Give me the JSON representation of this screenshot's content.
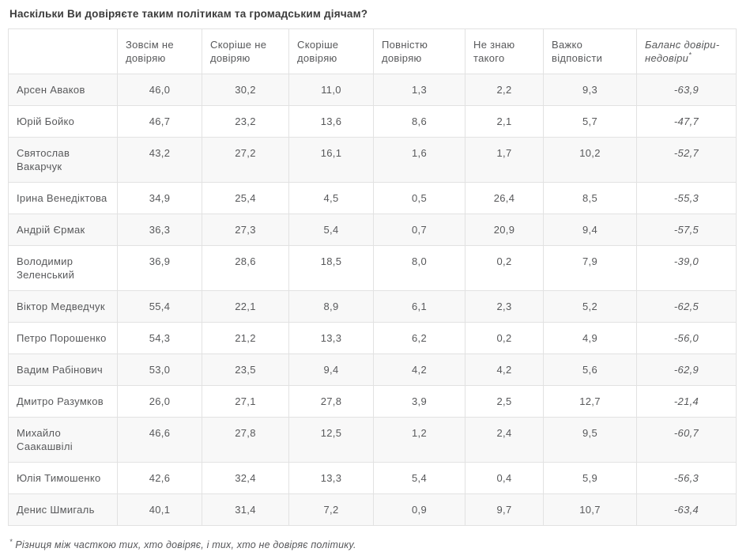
{
  "title": "Наскільки Ви довіряєте таким політикам та громадським діячам?",
  "chart_data": {
    "type": "table",
    "title": "Наскільки Ви довіряєте таким політикам та громадським діячам?",
    "name_column_header": "",
    "columns": [
      "Зовсім не довіряю",
      "Скоріше не довіряю",
      "Скоріше довіряю",
      "Повністю довіряю",
      "Не знаю такого",
      "Важко відповісти"
    ],
    "balance_column": {
      "label": "Баланс довіри-недовіри",
      "marker": "*"
    },
    "rows": [
      {
        "name": "Арсен Аваков",
        "values": [
          "46,0",
          "30,2",
          "11,0",
          "1,3",
          "2,2",
          "9,3"
        ],
        "balance": "-63,9"
      },
      {
        "name": "Юрій Бойко",
        "values": [
          "46,7",
          "23,2",
          "13,6",
          "8,6",
          "2,1",
          "5,7"
        ],
        "balance": "-47,7"
      },
      {
        "name": "Святослав Вакарчук",
        "values": [
          "43,2",
          "27,2",
          "16,1",
          "1,6",
          "1,7",
          "10,2"
        ],
        "balance": "-52,7"
      },
      {
        "name": "Ірина Венедіктова",
        "values": [
          "34,9",
          "25,4",
          "4,5",
          "0,5",
          "26,4",
          "8,5"
        ],
        "balance": "-55,3"
      },
      {
        "name": "Андрій Єрмак",
        "values": [
          "36,3",
          "27,3",
          "5,4",
          "0,7",
          "20,9",
          "9,4"
        ],
        "balance": "-57,5"
      },
      {
        "name": "Володимир Зеленський",
        "values": [
          "36,9",
          "28,6",
          "18,5",
          "8,0",
          "0,2",
          "7,9"
        ],
        "balance": "-39,0"
      },
      {
        "name": "Віктор Медведчук",
        "values": [
          "55,4",
          "22,1",
          "8,9",
          "6,1",
          "2,3",
          "5,2"
        ],
        "balance": "-62,5"
      },
      {
        "name": "Петро Порошенко",
        "values": [
          "54,3",
          "21,2",
          "13,3",
          "6,2",
          "0,2",
          "4,9"
        ],
        "balance": "-56,0"
      },
      {
        "name": "Вадим Рабінович",
        "values": [
          "53,0",
          "23,5",
          "9,4",
          "4,2",
          "4,2",
          "5,6"
        ],
        "balance": "-62,9"
      },
      {
        "name": "Дмитро Разумков",
        "values": [
          "26,0",
          "27,1",
          "27,8",
          "3,9",
          "2,5",
          "12,7"
        ],
        "balance": "-21,4"
      },
      {
        "name": "Михайло Саакашвілі",
        "values": [
          "46,6",
          "27,8",
          "12,5",
          "1,2",
          "2,4",
          "9,5"
        ],
        "balance": "-60,7"
      },
      {
        "name": "Юлія Тимошенко",
        "values": [
          "42,6",
          "32,4",
          "13,3",
          "5,4",
          "0,4",
          "5,9"
        ],
        "balance": "-56,3"
      },
      {
        "name": "Денис Шмигаль",
        "values": [
          "40,1",
          "31,4",
          "7,2",
          "0,9",
          "9,7",
          "10,7"
        ],
        "balance": "-63,4"
      }
    ]
  },
  "footnote": {
    "marker": "*",
    "text": "Різниця між часткою тих, хто довіряє, і тих, хто не довіряє політику."
  }
}
